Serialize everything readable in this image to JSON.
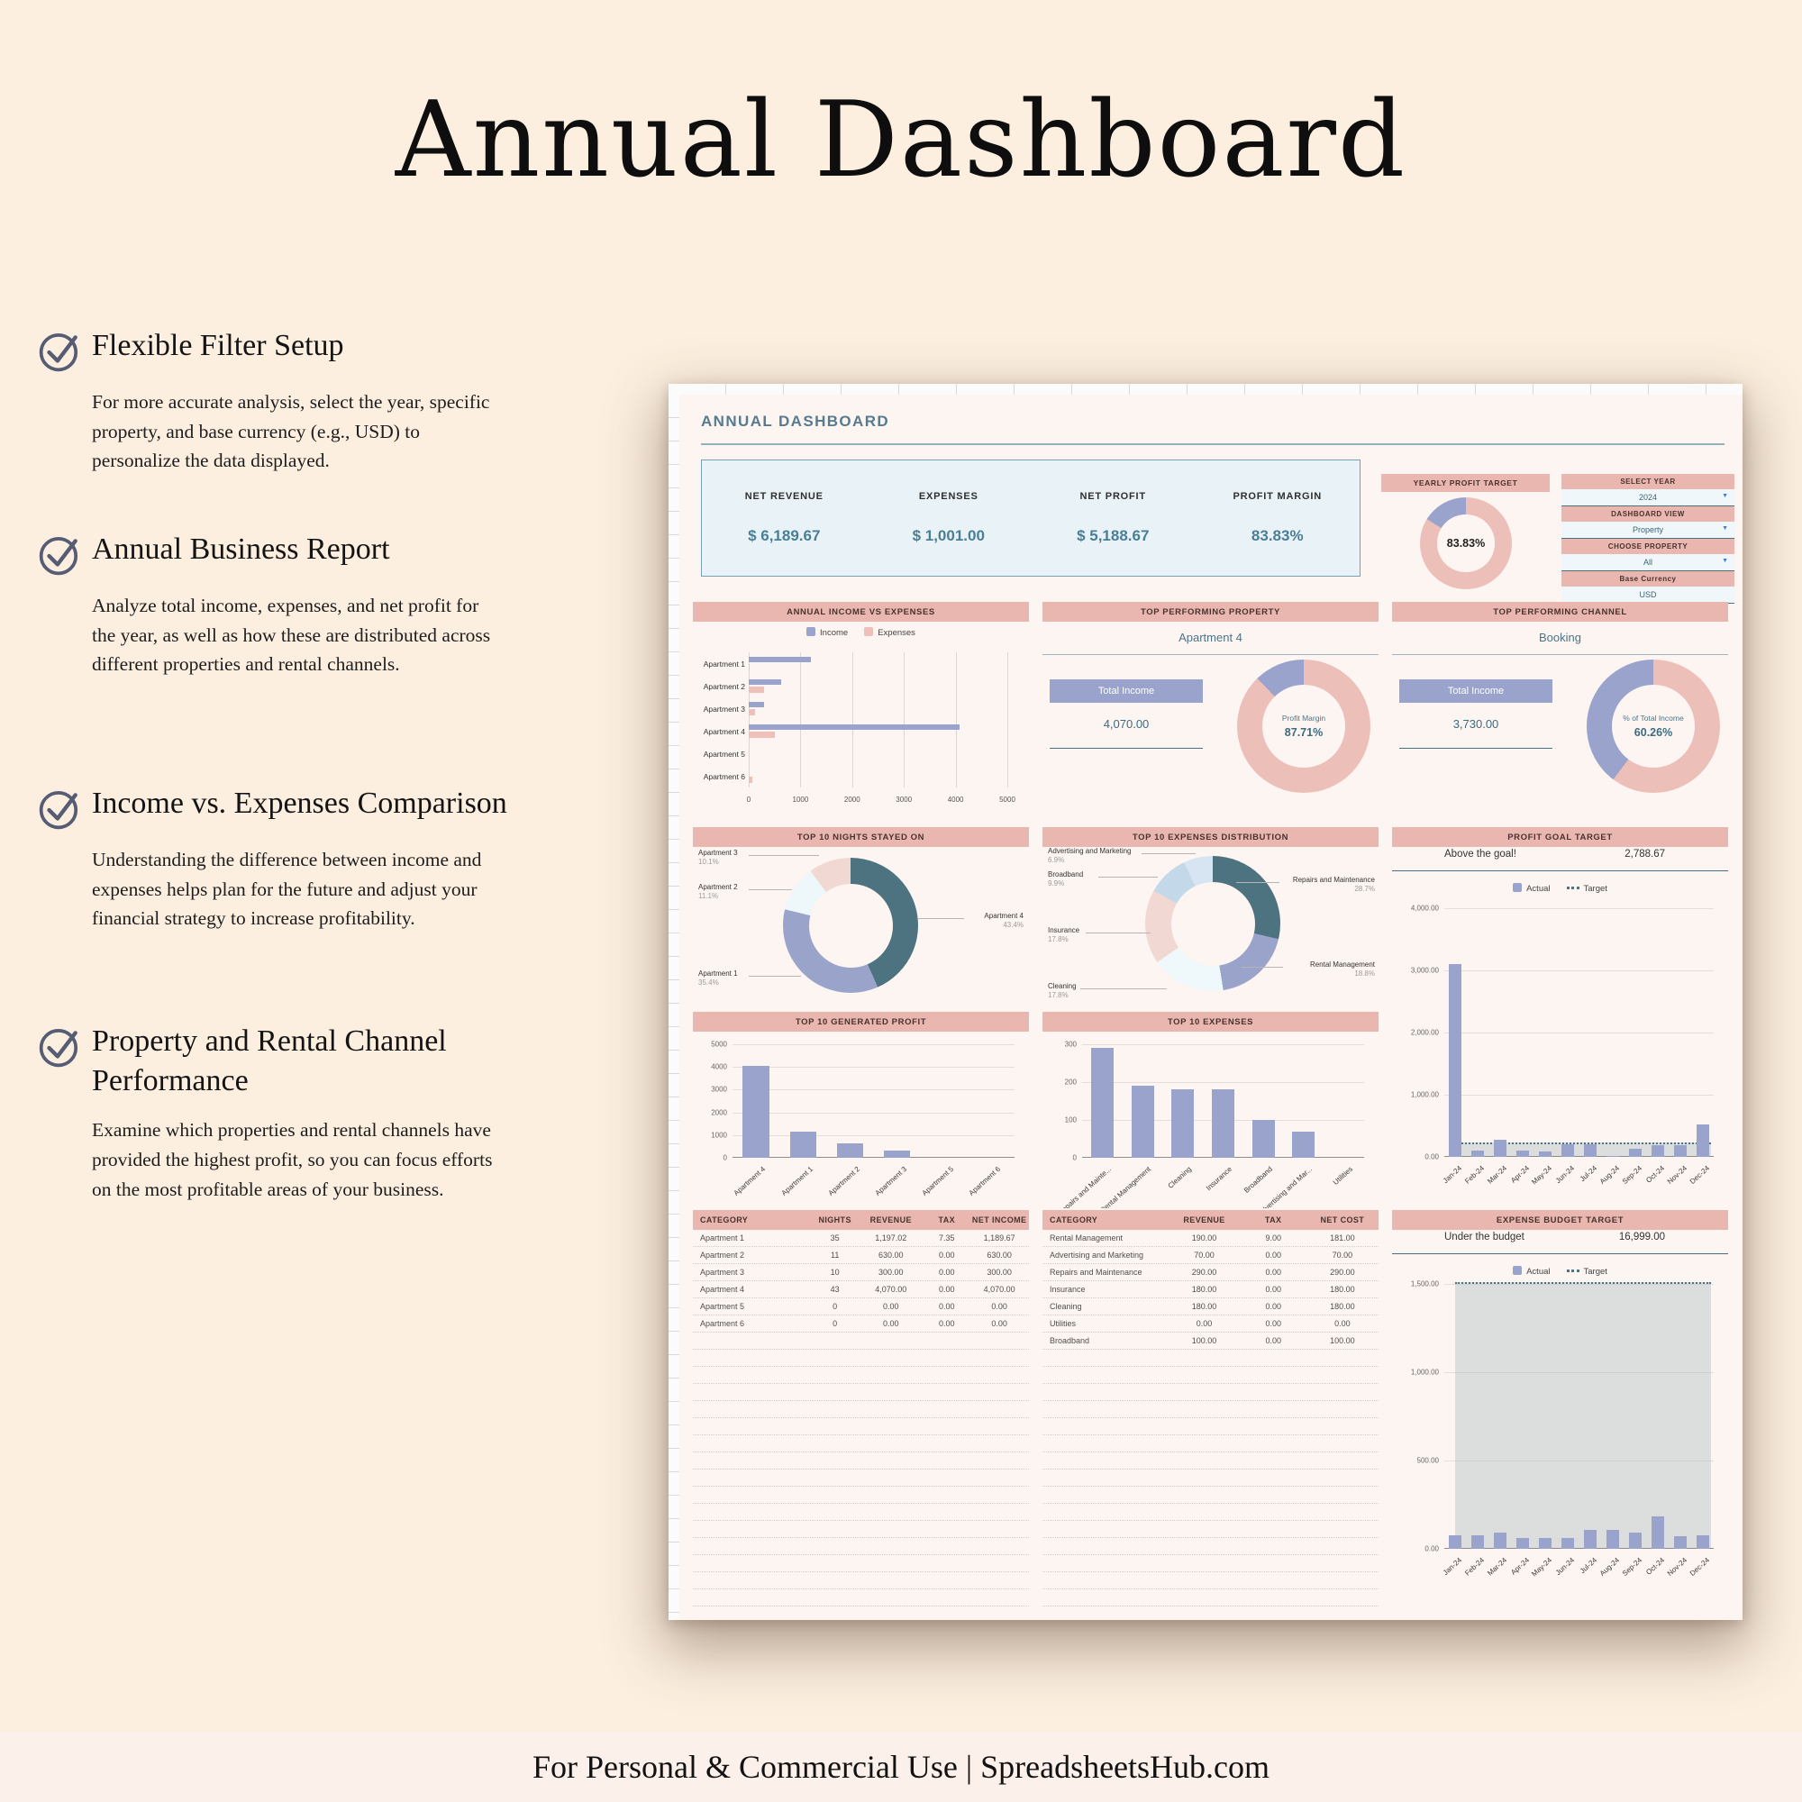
{
  "page": {
    "title": "Annual Dashboard",
    "footer": "For Personal & Commercial Use  |  SpreadsheetsHub.com"
  },
  "features": [
    {
      "heading": "Flexible Filter Setup",
      "body": "For more accurate analysis, select the year, specific property, and base currency (e.g., USD) to personalize the data displayed."
    },
    {
      "heading": "Annual Business Report",
      "body": "Analyze total income, expenses, and net profit for the year, as well as how these are distributed across different properties and rental channels."
    },
    {
      "heading": "Income vs. Expenses Comparison",
      "body": "Understanding the difference between income and expenses helps plan for the future and adjust your financial strategy to increase profitability."
    },
    {
      "heading": "Property and Rental Channel Performance",
      "body": "Examine which properties and rental channels have provided the highest profit, so you can focus efforts on the most profitable areas of your business."
    }
  ],
  "dashboard": {
    "title": "ANNUAL DASHBOARD",
    "kpis": [
      {
        "label": "NET REVENUE",
        "value": "$ 6,189.67"
      },
      {
        "label": "EXPENSES",
        "value": "$ 1,001.00"
      },
      {
        "label": "NET PROFIT",
        "value": "$ 5,188.67"
      },
      {
        "label": "PROFIT MARGIN",
        "value": "83.83%"
      }
    ],
    "yearly_profit_target": {
      "header": "YEARLY PROFIT TARGET",
      "value": "83.83%",
      "pct": 83.83,
      "ring_color": "#edbfb9",
      "accent_color": "#99a3cb"
    },
    "controls": [
      {
        "label": "SELECT YEAR",
        "value": "2024"
      },
      {
        "label": "DASHBOARD VIEW",
        "value": "Property"
      },
      {
        "label": "CHOOSE PROPERTY",
        "value": "All"
      },
      {
        "label": "Base Currency",
        "value": "USD"
      }
    ],
    "tables": {
      "income": {
        "headers": [
          "CATEGORY",
          "NIGHTS",
          "REVENUE",
          "TAX",
          "NET INCOME"
        ],
        "rows": [
          [
            "Apartment 1",
            "35",
            "1,197.02",
            "7.35",
            "1,189.67"
          ],
          [
            "Apartment 2",
            "11",
            "630.00",
            "0.00",
            "630.00"
          ],
          [
            "Apartment 3",
            "10",
            "300.00",
            "0.00",
            "300.00"
          ],
          [
            "Apartment 4",
            "43",
            "4,070.00",
            "0.00",
            "4,070.00"
          ],
          [
            "Apartment 5",
            "0",
            "0.00",
            "0.00",
            "0.00"
          ],
          [
            "Apartment 6",
            "0",
            "0.00",
            "0.00",
            "0.00"
          ]
        ]
      },
      "expense": {
        "headers": [
          "CATEGORY",
          "REVENUE",
          "TAX",
          "NET COST"
        ],
        "rows": [
          [
            "Rental Management",
            "190.00",
            "9.00",
            "181.00"
          ],
          [
            "Advertising and Marketing",
            "70.00",
            "0.00",
            "70.00"
          ],
          [
            "Repairs and Maintenance",
            "290.00",
            "0.00",
            "290.00"
          ],
          [
            "Insurance",
            "180.00",
            "0.00",
            "180.00"
          ],
          [
            "Cleaning",
            "180.00",
            "0.00",
            "180.00"
          ],
          [
            "Utilities",
            "0.00",
            "0.00",
            "0.00"
          ],
          [
            "Broadband",
            "100.00",
            "0.00",
            "100.00"
          ]
        ]
      }
    }
  },
  "chart_data": [
    {
      "id": "income_vs_expenses",
      "type": "bar",
      "orientation": "horizontal",
      "title": "ANNUAL INCOME VS EXPENSES",
      "categories": [
        "Apartment 1",
        "Apartment 2",
        "Apartment 3",
        "Apartment 4",
        "Apartment 5",
        "Apartment 6"
      ],
      "series": [
        {
          "name": "Income",
          "color": "#99a3cb",
          "values": [
            1197,
            630,
            300,
            4070,
            0,
            0
          ]
        },
        {
          "name": "Expenses",
          "color": "#efc0ba",
          "values": [
            8,
            290,
            120,
            500,
            0,
            70
          ]
        }
      ],
      "xticks": [
        "0",
        "1000",
        "2000",
        "3000",
        "4000",
        "5000"
      ],
      "xlim": [
        0,
        5000
      ],
      "legend_position": "top"
    },
    {
      "id": "top_property",
      "type": "donut",
      "title": "TOP PERFORMING PROPERTY",
      "subtitle": "Apartment 4",
      "stat_label": "Total Income",
      "stat_value": "4,070.00",
      "center_label": "Profit Margin",
      "center_value": "87.71%",
      "pct": 87.71,
      "ring_color": "#edbfb9",
      "accent_color": "#99a3cb"
    },
    {
      "id": "top_channel",
      "type": "donut",
      "title": "TOP PERFORMING CHANNEL",
      "subtitle": "Booking",
      "stat_label": "Total Income",
      "stat_value": "3,730.00",
      "center_label": "% of Total Income",
      "center_value": "60.26%",
      "pct": 60.26,
      "ring_color": "#edbfb9",
      "accent_color": "#99a3cb"
    },
    {
      "id": "nights",
      "type": "donut",
      "title": "TOP 10 NIGHTS STAYED ON",
      "segments": [
        {
          "label": "Apartment 4",
          "pct": 43.4,
          "pct_label": "43.4%",
          "color": "#4e7380"
        },
        {
          "label": "Apartment 1",
          "pct": 35.4,
          "pct_label": "35.4%",
          "color": "#9aa4ca"
        },
        {
          "label": "Apartment 2",
          "pct": 11.1,
          "pct_label": "11.1%",
          "color": "#eef7fa"
        },
        {
          "label": "Apartment 3",
          "pct": 10.1,
          "pct_label": "10.1%",
          "color": "#f2d8d2"
        }
      ]
    },
    {
      "id": "expense_dist",
      "type": "donut",
      "title": "TOP 10 EXPENSES DISTRIBUTION",
      "segments": [
        {
          "label": "Repairs and Maintenance",
          "pct": 28.7,
          "pct_label": "28.7%",
          "color": "#4e7380"
        },
        {
          "label": "Rental Management",
          "pct": 18.8,
          "pct_label": "18.8%",
          "color": "#9aa4ca"
        },
        {
          "label": "Cleaning",
          "pct": 17.8,
          "pct_label": "17.8%",
          "color": "#eff8fb"
        },
        {
          "label": "Insurance",
          "pct": 17.8,
          "pct_label": "17.8%",
          "color": "#f2d8d2"
        },
        {
          "label": "Broadband",
          "pct": 9.9,
          "pct_label": "9.9%",
          "color": "#c3d9ea"
        },
        {
          "label": "Advertising and Marketing",
          "pct": 6.9,
          "pct_label": "6.9%",
          "color": "#d6e5f1"
        }
      ]
    },
    {
      "id": "profit_goal",
      "type": "bar",
      "title": "PROFIT GOAL TARGET",
      "status": "Above the goal!",
      "status_value": "2,788.67",
      "legend": [
        "Actual",
        "Target"
      ],
      "categories": [
        "Jan-24",
        "Feb-24",
        "Mar-24",
        "Apr-24",
        "May-24",
        "Jun-24",
        "Jul-24",
        "Aug-24",
        "Sep-24",
        "Oct-24",
        "Nov-24",
        "Dec-24"
      ],
      "values": [
        3100,
        100,
        280,
        100,
        80,
        200,
        200,
        10,
        130,
        190,
        190,
        520
      ],
      "target": 200,
      "yticks": [
        "4,000.00",
        "3,000.00",
        "2,000.00",
        "1,000.00",
        "0.00"
      ],
      "ylim": [
        0,
        4000
      ],
      "bar_color": "#99a3cb"
    },
    {
      "id": "gen_profit",
      "type": "bar",
      "title": "TOP 10 GENERATED PROFIT",
      "categories": [
        "Apartment 4",
        "Apartment 1",
        "Apartment 2",
        "Apartment 3",
        "Apartment 5",
        "Apartment 6"
      ],
      "values": [
        4050,
        1150,
        620,
        300,
        0,
        0
      ],
      "yticks": [
        "5000",
        "4000",
        "3000",
        "2000",
        "1000",
        "0"
      ],
      "ylim": [
        0,
        5000
      ],
      "bar_color": "#99a3cb"
    },
    {
      "id": "top_expenses",
      "type": "bar",
      "title": "TOP 10 EXPENSES",
      "categories": [
        "Repairs and Mainte...",
        "Rental Management",
        "Cleaning",
        "Insurance",
        "Broadband",
        "Advertising and Mar...",
        "Utilities"
      ],
      "values": [
        290,
        190,
        180,
        180,
        100,
        70,
        0
      ],
      "yticks": [
        "300",
        "200",
        "100",
        "0"
      ],
      "ylim": [
        0,
        300
      ],
      "bar_color": "#99a3cb"
    },
    {
      "id": "expense_budget",
      "type": "bar",
      "title": "EXPENSE BUDGET TARGET",
      "status": "Under the budget",
      "status_value": "16,999.00",
      "legend": [
        "Actual",
        "Target"
      ],
      "categories": [
        "Jan-24",
        "Feb-24",
        "Mar-24",
        "Apr-24",
        "May-24",
        "Jun-24",
        "Jul-24",
        "Aug-24",
        "Sep-24",
        "Oct-24",
        "Nov-24",
        "Dec-24"
      ],
      "values": [
        75,
        75,
        90,
        60,
        60,
        60,
        105,
        105,
        90,
        185,
        70,
        75
      ],
      "target": 1500,
      "yticks": [
        "1,500.00",
        "1,000.00",
        "500.00",
        "0.00"
      ],
      "ylim": [
        0,
        1500
      ],
      "bar_color": "#99a3cb"
    }
  ]
}
